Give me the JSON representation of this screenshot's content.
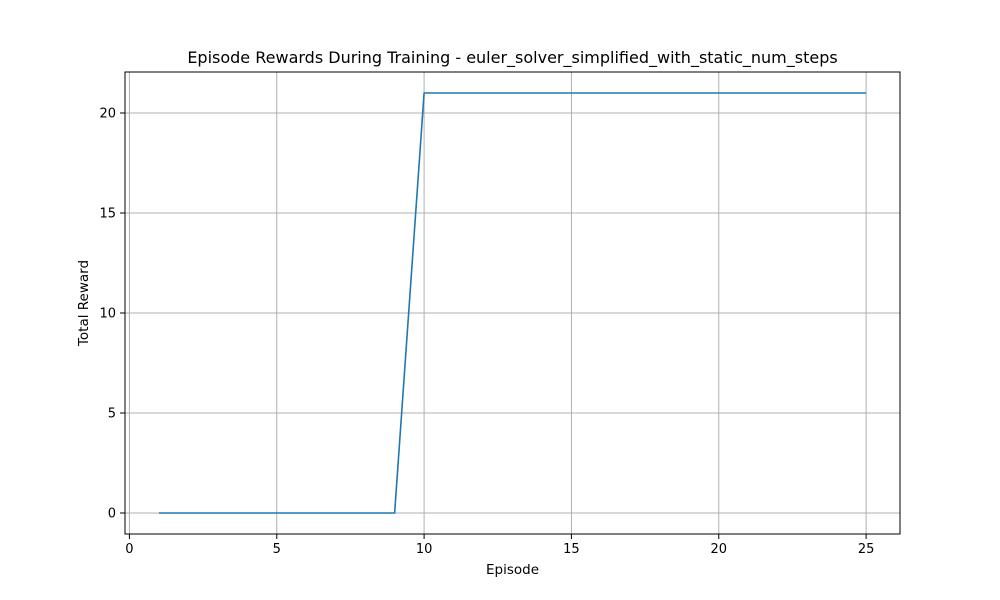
{
  "chart_data": {
    "type": "line",
    "title": "Episode Rewards During Training - euler_solver_simplified_with_static_num_steps",
    "xlabel": "Episode",
    "ylabel": "Total Reward",
    "xlim": [
      -0.15,
      26.15
    ],
    "ylim": [
      -1.05,
      22.05
    ],
    "xticks": [
      0,
      5,
      10,
      15,
      20,
      25
    ],
    "yticks": [
      0,
      5,
      10,
      15,
      20
    ],
    "grid": true,
    "legend": "none",
    "series": [
      {
        "color": "#1f77b4",
        "x": [
          1,
          2,
          3,
          4,
          5,
          6,
          7,
          8,
          9,
          10,
          11,
          12,
          13,
          14,
          15,
          16,
          17,
          18,
          19,
          20,
          21,
          22,
          23,
          24,
          25
        ],
        "y": [
          0,
          0,
          0,
          0,
          0,
          0,
          0,
          0,
          0,
          21,
          21,
          21,
          21,
          21,
          21,
          21,
          21,
          21,
          21,
          21,
          21,
          21,
          21,
          21,
          21
        ]
      }
    ]
  }
}
